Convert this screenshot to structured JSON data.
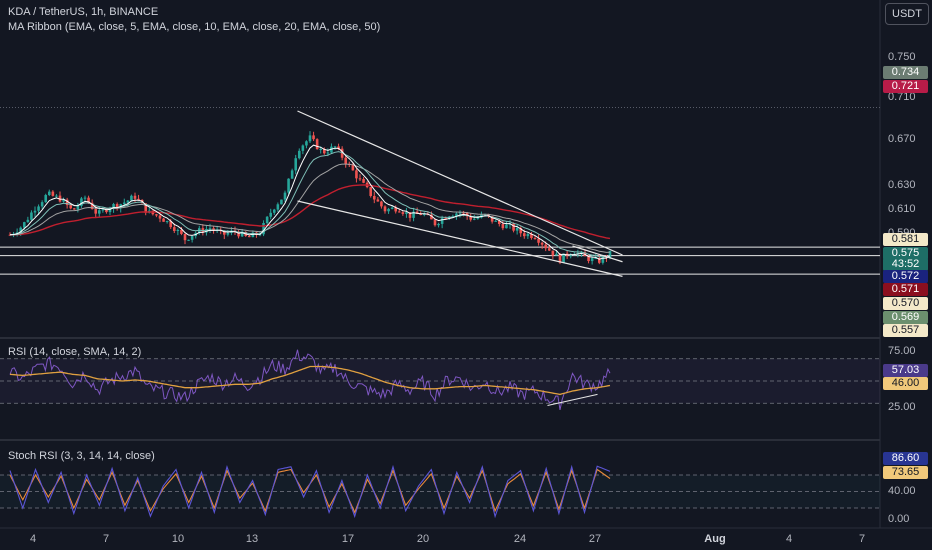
{
  "header": {
    "symbol_line": "KDA / TetherUS, 1h, BINANCE",
    "ma_ribbon_line": "MA Ribbon (EMA, close, 5, EMA, close, 10, EMA, close, 20, EMA, close, 50)",
    "rsi_line": "RSI (14, close, SMA, 14, 2)",
    "stoch_line": "Stoch RSI (3, 3, 14, 14, close)",
    "currency_button": "USDT"
  },
  "colors": {
    "background": "#131722",
    "candle_up": "#26a69a",
    "candle_down": "#ef5350",
    "ema5": "#ffffff",
    "ema10": "#7fbfb7",
    "ema20": "#a3a3a3",
    "ema50": "#c01f2e",
    "rsi_line": "#7e57c2",
    "rsi_ma": "#e0a040",
    "stoch_k": "#5b55d6",
    "stoch_d": "#e8893a",
    "trendline": "#e6e6e6"
  },
  "price_axis": {
    "ticks": [
      "0.750",
      "0.710",
      "0.670",
      "0.630",
      "0.610",
      "0.590"
    ],
    "badges": [
      {
        "text": "0.734",
        "bg": "#6b7c72",
        "fg": "#ffffff"
      },
      {
        "text": "0.721",
        "bg": "#b71c48",
        "fg": "#ffffff"
      },
      {
        "text": "0.581",
        "bg": "#f4e9c9",
        "fg": "#131722"
      },
      {
        "text": "0.575",
        "bg": "#1e6e66",
        "fg": "#ffffff"
      },
      {
        "text": "43:52",
        "bg": "#1e6e66",
        "fg": "#ffffff"
      },
      {
        "text": "0.572",
        "bg": "#1a237e",
        "fg": "#ffffff"
      },
      {
        "text": "0.571",
        "bg": "#8b0f1f",
        "fg": "#ffffff"
      },
      {
        "text": "0.570",
        "bg": "#f4e9c9",
        "fg": "#131722"
      },
      {
        "text": "0.569",
        "bg": "#6b8f6e",
        "fg": "#ffffff"
      },
      {
        "text": "0.557",
        "bg": "#f4e9c9",
        "fg": "#131722"
      }
    ]
  },
  "rsi_axis": {
    "ticks": [
      "75.00",
      "25.00"
    ],
    "badges": [
      {
        "text": "57.03",
        "bg": "#4a3a8a",
        "fg": "#ffffff"
      },
      {
        "text": "46.00",
        "bg": "#f0c87a",
        "fg": "#131722"
      }
    ]
  },
  "stoch_axis": {
    "ticks": [
      "40.00",
      "0.00"
    ],
    "badges": [
      {
        "text": "86.60",
        "bg": "#283593",
        "fg": "#ffffff"
      },
      {
        "text": "73.65",
        "bg": "#f0c87a",
        "fg": "#131722"
      }
    ]
  },
  "time_axis": [
    "4",
    "7",
    "10",
    "13",
    "17",
    "20",
    "24",
    "27",
    "Aug",
    "4",
    "7"
  ],
  "chart_data": [
    {
      "type": "candlestick",
      "title": "KDA / TetherUS, 1h, BINANCE",
      "x_range": [
        "Jul 3",
        "Aug 8"
      ],
      "ylim": [
        0.54,
        0.76
      ],
      "horizontal_levels": [
        0.705,
        0.581,
        0.5735,
        0.557
      ],
      "close_series": [
        {
          "x": "Jul 3 00:00",
          "y": 0.592
        },
        {
          "x": "Jul 3 12:00",
          "y": 0.6
        },
        {
          "x": "Jul 4 00:00",
          "y": 0.616
        },
        {
          "x": "Jul 4 12:00",
          "y": 0.628
        },
        {
          "x": "Jul 5 00:00",
          "y": 0.624
        },
        {
          "x": "Jul 5 12:00",
          "y": 0.613
        },
        {
          "x": "Jul 6 00:00",
          "y": 0.625
        },
        {
          "x": "Jul 6 12:00",
          "y": 0.61
        },
        {
          "x": "Jul 7 00:00",
          "y": 0.617
        },
        {
          "x": "Jul 7 12:00",
          "y": 0.62
        },
        {
          "x": "Jul 8 00:00",
          "y": 0.626
        },
        {
          "x": "Jul 8 12:00",
          "y": 0.612
        },
        {
          "x": "Jul 9 00:00",
          "y": 0.608
        },
        {
          "x": "Jul 9 12:00",
          "y": 0.6
        },
        {
          "x": "Jul 10 00:00",
          "y": 0.588
        },
        {
          "x": "Jul 10 12:00",
          "y": 0.595
        },
        {
          "x": "Jul 11 00:00",
          "y": 0.598
        },
        {
          "x": "Jul 11 12:00",
          "y": 0.592
        },
        {
          "x": "Jul 12 00:00",
          "y": 0.595
        },
        {
          "x": "Jul 12 12:00",
          "y": 0.589
        },
        {
          "x": "Jul 13 00:00",
          "y": 0.594
        },
        {
          "x": "Jul 13 12:00",
          "y": 0.615
        },
        {
          "x": "Jul 14 00:00",
          "y": 0.628
        },
        {
          "x": "Jul 14 12:00",
          "y": 0.668
        },
        {
          "x": "Jul 15 00:00",
          "y": 0.678
        },
        {
          "x": "Jul 15 12:00",
          "y": 0.665
        },
        {
          "x": "Jul 16 00:00",
          "y": 0.67
        },
        {
          "x": "Jul 16 12:00",
          "y": 0.655
        },
        {
          "x": "Jul 17 00:00",
          "y": 0.64
        },
        {
          "x": "Jul 17 12:00",
          "y": 0.626
        },
        {
          "x": "Jul 18 00:00",
          "y": 0.614
        },
        {
          "x": "Jul 18 12:00",
          "y": 0.616
        },
        {
          "x": "Jul 19 00:00",
          "y": 0.609
        },
        {
          "x": "Jul 19 12:00",
          "y": 0.611
        },
        {
          "x": "Jul 20 00:00",
          "y": 0.602
        },
        {
          "x": "Jul 20 12:00",
          "y": 0.61
        },
        {
          "x": "Jul 21 00:00",
          "y": 0.612
        },
        {
          "x": "Jul 21 12:00",
          "y": 0.606
        },
        {
          "x": "Jul 22 00:00",
          "y": 0.609
        },
        {
          "x": "Jul 22 12:00",
          "y": 0.602
        },
        {
          "x": "Jul 23 00:00",
          "y": 0.599
        },
        {
          "x": "Jul 23 12:00",
          "y": 0.593
        },
        {
          "x": "Jul 24 00:00",
          "y": 0.591
        },
        {
          "x": "Jul 24 12:00",
          "y": 0.58
        },
        {
          "x": "Jul 25 00:00",
          "y": 0.57
        },
        {
          "x": "Jul 25 12:00",
          "y": 0.578
        },
        {
          "x": "Jul 26 00:00",
          "y": 0.572
        },
        {
          "x": "Jul 26 12:00",
          "y": 0.568
        },
        {
          "x": "Jul 27 00:00",
          "y": 0.575
        }
      ],
      "trendlines": [
        {
          "from": {
            "x": "Jul 14 12:00",
            "y": 0.702
          },
          "to": {
            "x": "Jul 27 12:00",
            "y": 0.574
          }
        },
        {
          "from": {
            "x": "Jul 14 12:00",
            "y": 0.622
          },
          "to": {
            "x": "Jul 27 12:00",
            "y": 0.555
          }
        },
        {
          "from": {
            "x": "Jul 25 12:00",
            "y": 0.582
          },
          "to": {
            "x": "Jul 27 12:00",
            "y": 0.568
          }
        }
      ]
    },
    {
      "type": "line",
      "title": "RSI (14, close, SMA, 14, 2)",
      "ylim": [
        15,
        85
      ],
      "reference_lines": [
        70,
        50,
        30
      ],
      "series": [
        {
          "values": [
            58,
            52,
            60,
            66,
            63,
            48,
            57,
            42,
            50,
            55,
            59,
            44,
            41,
            38,
            35,
            47,
            54,
            48,
            52,
            46,
            53,
            64,
            61,
            73,
            70,
            58,
            62,
            50,
            45,
            40,
            38,
            47,
            42,
            49,
            38,
            51,
            53,
            43,
            49,
            40,
            44,
            38,
            41,
            35,
            30,
            55,
            47,
            46,
            57.03
          ]
        },
        {
          "values": [
            56,
            55,
            56,
            57,
            58,
            56,
            55,
            52,
            51,
            50,
            51,
            50,
            48,
            46,
            44,
            44,
            45,
            46,
            47,
            47,
            48,
            52,
            55,
            59,
            63,
            63,
            62,
            60,
            57,
            53,
            49,
            46,
            44,
            43,
            43,
            44,
            45,
            45,
            46,
            45,
            44,
            43,
            42,
            40,
            38,
            41,
            43,
            44,
            46
          ]
        }
      ],
      "divergence_line": {
        "from": {
          "x": "Jul 24 12:00",
          "y": 28
        },
        "to": {
          "x": "Jul 26 12:00",
          "y": 38
        }
      }
    },
    {
      "type": "line",
      "title": "Stoch RSI (3, 3, 14, 14, close)",
      "ylim": [
        0,
        100
      ],
      "reference_lines": [
        80,
        50,
        20
      ],
      "series": [
        {
          "values": [
            88,
            20,
            90,
            30,
            85,
            10,
            80,
            25,
            92,
            15,
            75,
            5,
            60,
            90,
            20,
            85,
            12,
            95,
            30,
            70,
            8,
            90,
            95,
            40,
            88,
            12,
            70,
            5,
            80,
            20,
            95,
            15,
            60,
            90,
            10,
            85,
            30,
            95,
            5,
            70,
            88,
            15,
            92,
            10,
            95,
            12,
            96,
            86.6
          ]
        },
        {
          "values": [
            80,
            35,
            80,
            40,
            78,
            20,
            72,
            35,
            85,
            25,
            70,
            15,
            55,
            82,
            30,
            78,
            20,
            88,
            38,
            65,
            15,
            85,
            90,
            48,
            80,
            22,
            64,
            12,
            72,
            28,
            88,
            25,
            55,
            82,
            20,
            78,
            38,
            88,
            15,
            64,
            82,
            24,
            85,
            18,
            88,
            20,
            90,
            73.65
          ]
        }
      ]
    }
  ]
}
